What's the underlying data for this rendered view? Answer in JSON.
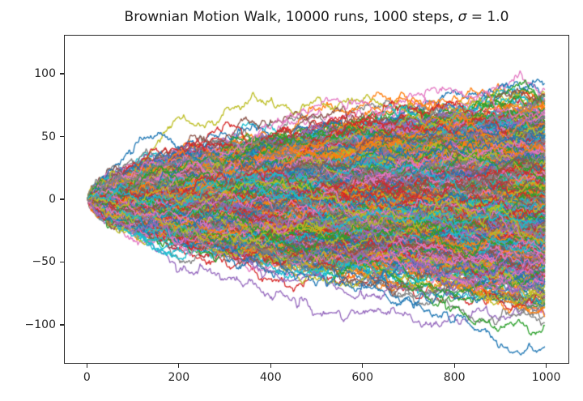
{
  "title": {
    "prefix": "Brownian Motion Walk, 10000 runs, 1000 steps, ",
    "sigma": "σ",
    "suffix": " = 1.0"
  },
  "chart_data": {
    "type": "line",
    "title": "Brownian Motion Walk, 10000 runs, 1000 steps, σ = 1.0",
    "runs": 10000,
    "steps": 1000,
    "sigma": 1.0,
    "xlabel": "",
    "ylabel": "",
    "x_data_range": [
      0,
      1000
    ],
    "y_envelope_at_final_step": [
      -117,
      119
    ],
    "xlim": [
      -50,
      1050
    ],
    "ylim": [
      -131,
      131
    ],
    "xticks": [
      0,
      200,
      400,
      600,
      800,
      1000
    ],
    "xtick_labels": [
      "0",
      "200",
      "400",
      "600",
      "800",
      "1000"
    ],
    "yticks": [
      -100,
      -50,
      0,
      50,
      100
    ],
    "ytick_labels": [
      "−100",
      "−50",
      "0",
      "50",
      "100"
    ],
    "grid": false,
    "legend": false,
    "background": "#ffffff",
    "spine_color": "#262626",
    "tick_color": "#262626",
    "palette": [
      "#1f77b4",
      "#ff7f0e",
      "#2ca02c",
      "#d62728",
      "#9467bd",
      "#8c564b",
      "#e377c2",
      "#7f7f7f",
      "#bcbd22",
      "#17becf"
    ],
    "sim": {
      "drawn_runs": 2000,
      "stride": 2,
      "seed": 42,
      "line_width": 1.3
    }
  }
}
